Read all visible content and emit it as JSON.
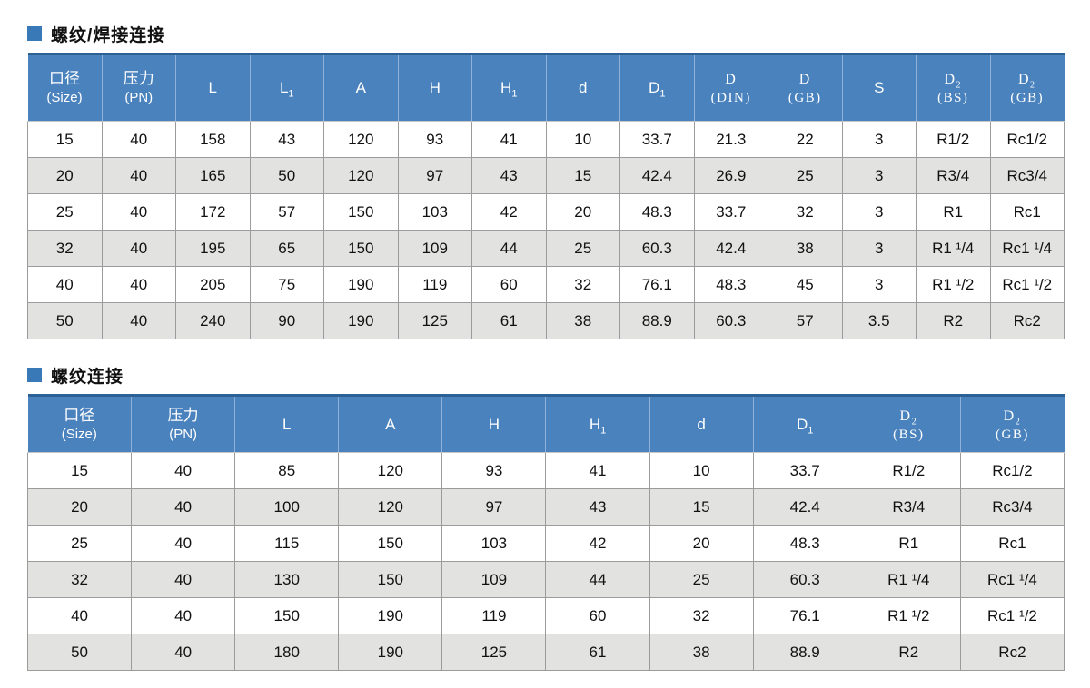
{
  "colors": {
    "header_blue": "#4a82bd",
    "header_top_rule": "#2d6095",
    "bullet_blue": "#3a79b8",
    "alt_row_gray": "#e2e2e1",
    "cell_border": "#9b9b9b"
  },
  "sections": [
    {
      "title": "螺纹/焊接连接",
      "columns": [
        {
          "zh": "口径",
          "en": "(Size)"
        },
        {
          "zh": "压力",
          "en": "(PN)"
        },
        {
          "main": "L"
        },
        {
          "main": "L",
          "sub": "1"
        },
        {
          "main": "A"
        },
        {
          "main": "H"
        },
        {
          "main": "H",
          "sub": "1"
        },
        {
          "main": "d"
        },
        {
          "main": "D",
          "sub": "1"
        },
        {
          "main": "D",
          "en": "(DIN)"
        },
        {
          "main": "D",
          "en": "(GB)"
        },
        {
          "main": "S"
        },
        {
          "main": "D",
          "sub": "2",
          "en": "(BS)"
        },
        {
          "main": "D",
          "sub": "2",
          "en": "(GB)"
        }
      ],
      "rows": [
        [
          "15",
          "40",
          "158",
          "43",
          "120",
          "93",
          "41",
          "10",
          "33.7",
          "21.3",
          "22",
          "3",
          "R1/2",
          "Rc1/2"
        ],
        [
          "20",
          "40",
          "165",
          "50",
          "120",
          "97",
          "43",
          "15",
          "42.4",
          "26.9",
          "25",
          "3",
          "R3/4",
          "Rc3/4"
        ],
        [
          "25",
          "40",
          "172",
          "57",
          "150",
          "103",
          "42",
          "20",
          "48.3",
          "33.7",
          "32",
          "3",
          "R1",
          "Rc1"
        ],
        [
          "32",
          "40",
          "195",
          "65",
          "150",
          "109",
          "44",
          "25",
          "60.3",
          "42.4",
          "38",
          "3",
          "R1 ¹/4",
          "Rc1 ¹/4"
        ],
        [
          "40",
          "40",
          "205",
          "75",
          "190",
          "119",
          "60",
          "32",
          "76.1",
          "48.3",
          "45",
          "3",
          "R1 ¹/2",
          "Rc1 ¹/2"
        ],
        [
          "50",
          "40",
          "240",
          "90",
          "190",
          "125",
          "61",
          "38",
          "88.9",
          "60.3",
          "57",
          "3.5",
          "R2",
          "Rc2"
        ]
      ]
    },
    {
      "title": "螺纹连接",
      "columns": [
        {
          "zh": "口径",
          "en": "(Size)"
        },
        {
          "zh": "压力",
          "en": "(PN)"
        },
        {
          "main": "L"
        },
        {
          "main": "A"
        },
        {
          "main": "H"
        },
        {
          "main": "H",
          "sub": "1"
        },
        {
          "main": "d"
        },
        {
          "main": "D",
          "sub": "1"
        },
        {
          "main": "D",
          "sub": "2",
          "en": "(BS)"
        },
        {
          "main": "D",
          "sub": "2",
          "en": "(GB)"
        }
      ],
      "rows": [
        [
          "15",
          "40",
          "85",
          "120",
          "93",
          "41",
          "10",
          "33.7",
          "R1/2",
          "Rc1/2"
        ],
        [
          "20",
          "40",
          "100",
          "120",
          "97",
          "43",
          "15",
          "42.4",
          "R3/4",
          "Rc3/4"
        ],
        [
          "25",
          "40",
          "115",
          "150",
          "103",
          "42",
          "20",
          "48.3",
          "R1",
          "Rc1"
        ],
        [
          "32",
          "40",
          "130",
          "150",
          "109",
          "44",
          "25",
          "60.3",
          "R1 ¹/4",
          "Rc1 ¹/4"
        ],
        [
          "40",
          "40",
          "150",
          "190",
          "119",
          "60",
          "32",
          "76.1",
          "R1 ¹/2",
          "Rc1 ¹/2"
        ],
        [
          "50",
          "40",
          "180",
          "190",
          "125",
          "61",
          "38",
          "88.9",
          "R2",
          "Rc2"
        ]
      ]
    }
  ]
}
